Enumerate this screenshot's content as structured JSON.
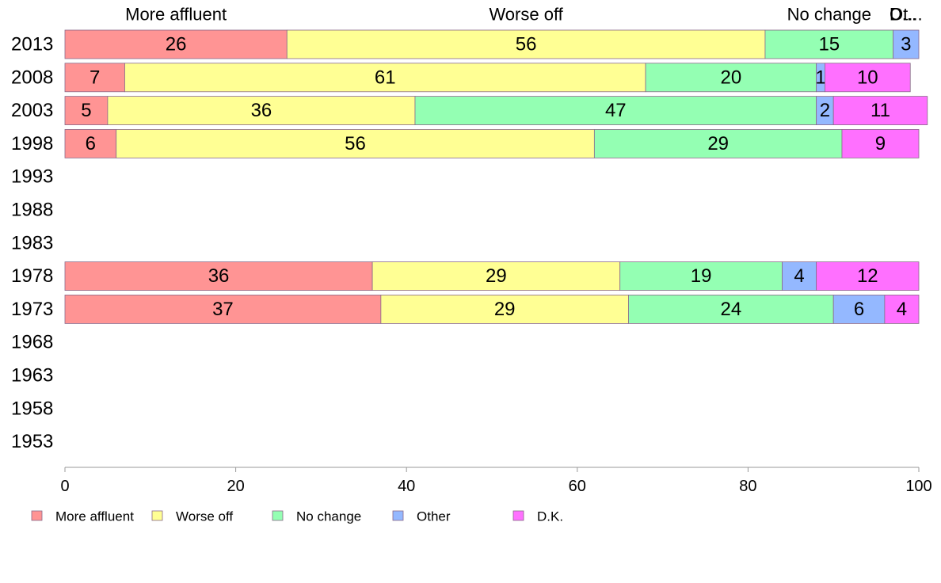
{
  "chart_data": {
    "type": "bar",
    "orientation": "horizontal",
    "stacked": true,
    "categories": [
      "2013",
      "2008",
      "2003",
      "1998",
      "1993",
      "1988",
      "1983",
      "1978",
      "1973",
      "1968",
      "1963",
      "1958",
      "1953"
    ],
    "series": [
      {
        "name": "More affluent",
        "color": "#ff9494",
        "values": [
          26,
          7,
          5,
          6,
          null,
          null,
          null,
          36,
          37,
          null,
          null,
          null,
          null
        ]
      },
      {
        "name": "Worse off",
        "color": "#ffff94",
        "values": [
          56,
          61,
          36,
          56,
          null,
          null,
          null,
          29,
          29,
          null,
          null,
          null,
          null
        ]
      },
      {
        "name": "No change",
        "color": "#94ffb3",
        "values": [
          15,
          20,
          47,
          29,
          null,
          null,
          null,
          19,
          24,
          null,
          null,
          null,
          null
        ]
      },
      {
        "name": "Other",
        "color": "#94b8ff",
        "values": [
          3,
          1,
          2,
          0,
          null,
          null,
          null,
          4,
          6,
          null,
          null,
          null,
          null
        ]
      },
      {
        "name": "D.K.",
        "color": "#ff70ff",
        "values": [
          0,
          10,
          11,
          9,
          null,
          null,
          null,
          12,
          4,
          null,
          null,
          null,
          null
        ]
      }
    ],
    "top_labels": [
      "More affluent",
      "Worse off",
      "No change",
      "Ot...",
      "D..."
    ],
    "xlim": [
      0,
      100
    ],
    "xticks": [
      0,
      20,
      40,
      60,
      80,
      100
    ],
    "legend_position": "bottom",
    "grid": false
  }
}
